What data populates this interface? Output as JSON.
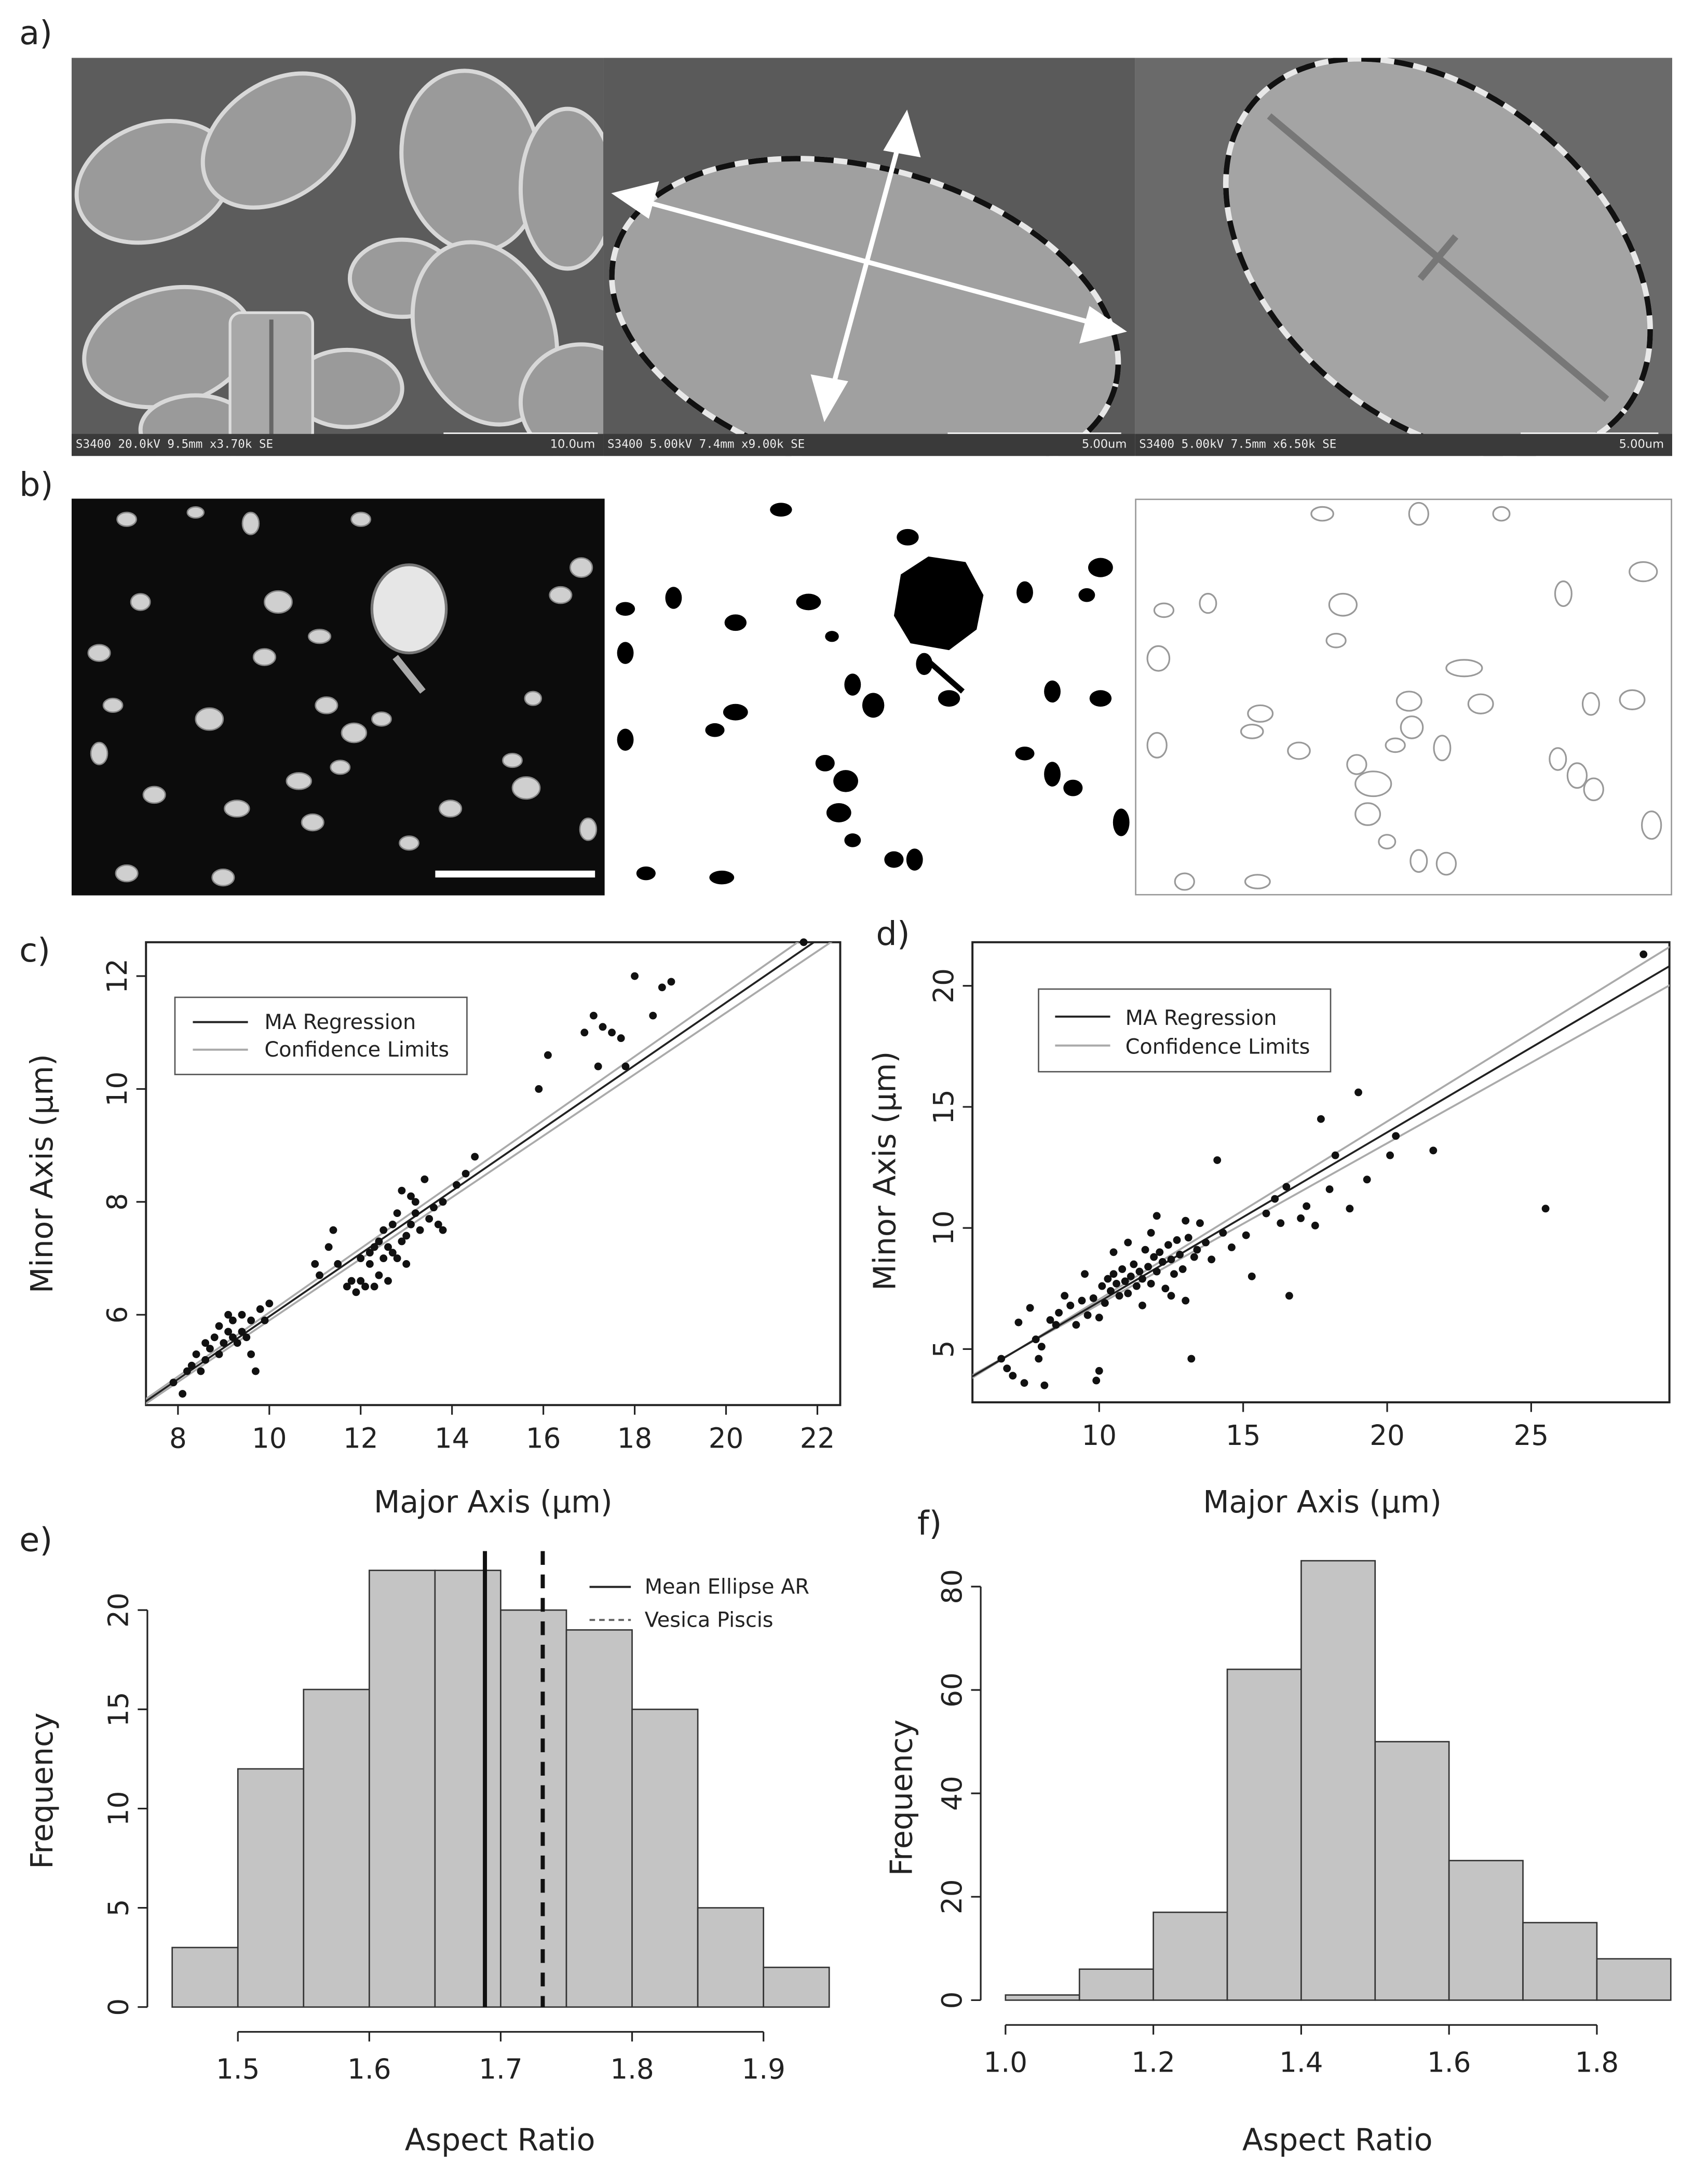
{
  "panels": {
    "a": {
      "label": "a)",
      "images": [
        {
          "footer": "S3400 20.0kV 9.5mm x3.70k SE",
          "scale": "10.0um"
        },
        {
          "footer": "S3400 5.00kV 7.4mm x9.00k SE",
          "scale": "5.00um"
        },
        {
          "footer": "S3400 5.00kV 7.5mm x6.50k SE",
          "scale": "5.00um"
        }
      ]
    },
    "b": {
      "label": "b)"
    },
    "c": {
      "label": "c)"
    },
    "d": {
      "label": "d)"
    },
    "e": {
      "label": "e)"
    },
    "f": {
      "label": "f)"
    }
  },
  "chart_data": [
    {
      "id": "c",
      "type": "scatter",
      "xlabel": "Major Axis (µm)",
      "ylabel": "Minor Axis (µm)",
      "xlim": [
        7.3,
        22.5
      ],
      "ylim": [
        4.4,
        12.6
      ],
      "xticks": [
        8,
        10,
        12,
        14,
        16,
        18,
        20,
        22
      ],
      "yticks": [
        6,
        8,
        10,
        12
      ],
      "legend": {
        "position": "top-left",
        "entries": [
          "MA Regression",
          "Confidence Limits"
        ]
      },
      "regression": {
        "slope": 0.556,
        "intercept": 0.41,
        "lower": {
          "slope": 0.545,
          "intercept": 0.45
        },
        "upper": {
          "slope": 0.567,
          "intercept": 0.37
        }
      },
      "points": [
        [
          7.9,
          4.8
        ],
        [
          8.1,
          4.6
        ],
        [
          8.2,
          5.0
        ],
        [
          8.3,
          5.1
        ],
        [
          8.4,
          5.3
        ],
        [
          8.5,
          5.0
        ],
        [
          8.6,
          5.5
        ],
        [
          8.7,
          5.4
        ],
        [
          8.8,
          5.6
        ],
        [
          8.9,
          5.3
        ],
        [
          8.9,
          5.8
        ],
        [
          9.0,
          5.5
        ],
        [
          9.1,
          5.7
        ],
        [
          9.2,
          5.9
        ],
        [
          9.2,
          5.6
        ],
        [
          9.3,
          5.5
        ],
        [
          9.4,
          6.0
        ],
        [
          9.4,
          5.7
        ],
        [
          9.5,
          5.6
        ],
        [
          9.6,
          5.9
        ],
        [
          9.7,
          5.0
        ],
        [
          9.8,
          6.1
        ],
        [
          9.9,
          5.9
        ],
        [
          10.0,
          6.2
        ],
        [
          9.1,
          6.0
        ],
        [
          8.6,
          5.2
        ],
        [
          9.6,
          5.3
        ],
        [
          11.1,
          6.7
        ],
        [
          11.3,
          7.2
        ],
        [
          11.4,
          7.5
        ],
        [
          11.5,
          6.9
        ],
        [
          11.7,
          6.5
        ],
        [
          11.8,
          6.6
        ],
        [
          11.9,
          6.4
        ],
        [
          12.0,
          6.6
        ],
        [
          12.1,
          6.5
        ],
        [
          12.2,
          6.9
        ],
        [
          12.2,
          7.1
        ],
        [
          12.3,
          7.2
        ],
        [
          12.4,
          7.3
        ],
        [
          12.4,
          6.7
        ],
        [
          12.5,
          7.0
        ],
        [
          12.5,
          7.5
        ],
        [
          12.6,
          7.2
        ],
        [
          12.6,
          6.6
        ],
        [
          12.7,
          7.6
        ],
        [
          12.7,
          7.1
        ],
        [
          12.8,
          7.8
        ],
        [
          12.8,
          7.0
        ],
        [
          12.9,
          7.3
        ],
        [
          12.9,
          8.2
        ],
        [
          13.0,
          7.4
        ],
        [
          13.0,
          6.9
        ],
        [
          13.1,
          7.6
        ],
        [
          13.1,
          8.1
        ],
        [
          13.2,
          7.8
        ],
        [
          13.3,
          7.5
        ],
        [
          13.4,
          8.4
        ],
        [
          13.5,
          7.7
        ],
        [
          13.6,
          7.9
        ],
        [
          13.7,
          7.6
        ],
        [
          13.8,
          8.0
        ],
        [
          13.8,
          7.5
        ],
        [
          14.1,
          8.3
        ],
        [
          14.3,
          8.5
        ],
        [
          14.5,
          8.8
        ],
        [
          11.0,
          6.9
        ],
        [
          12.0,
          7.0
        ],
        [
          12.3,
          6.5
        ],
        [
          13.2,
          8.0
        ],
        [
          15.9,
          10.0
        ],
        [
          16.1,
          10.6
        ],
        [
          16.9,
          11.0
        ],
        [
          17.1,
          11.3
        ],
        [
          17.2,
          10.4
        ],
        [
          17.3,
          11.1
        ],
        [
          17.5,
          11.0
        ],
        [
          17.7,
          10.9
        ],
        [
          18.0,
          12.0
        ],
        [
          17.8,
          10.4
        ],
        [
          18.4,
          11.3
        ],
        [
          18.6,
          11.8
        ],
        [
          18.8,
          11.9
        ],
        [
          21.7,
          12.6
        ]
      ]
    },
    {
      "id": "d",
      "type": "scatter",
      "xlabel": "Major Axis (µm)",
      "ylabel": "Minor Axis (µm)",
      "xlim": [
        5.6,
        29.8
      ],
      "ylim": [
        2.8,
        21.8
      ],
      "xticks": [
        10,
        15,
        20,
        25
      ],
      "yticks": [
        5,
        10,
        15,
        20
      ],
      "legend": {
        "position": "top-left",
        "entries": [
          "MA Regression",
          "Confidence Limits"
        ]
      },
      "regression": {
        "slope": 0.7,
        "intercept": -0.05,
        "lower": {
          "slope": 0.665,
          "intercept": 0.2
        },
        "upper": {
          "slope": 0.735,
          "intercept": -0.3
        }
      },
      "points": [
        [
          6.6,
          4.6
        ],
        [
          6.8,
          4.2
        ],
        [
          7.0,
          3.9
        ],
        [
          7.2,
          6.1
        ],
        [
          7.4,
          3.6
        ],
        [
          7.6,
          6.7
        ],
        [
          7.8,
          5.4
        ],
        [
          7.9,
          4.6
        ],
        [
          8.0,
          5.1
        ],
        [
          8.1,
          3.5
        ],
        [
          8.3,
          6.2
        ],
        [
          8.5,
          6.0
        ],
        [
          8.6,
          6.5
        ],
        [
          8.8,
          7.2
        ],
        [
          9.0,
          6.8
        ],
        [
          9.2,
          6.0
        ],
        [
          9.4,
          7.0
        ],
        [
          9.6,
          6.4
        ],
        [
          9.8,
          7.1
        ],
        [
          9.9,
          3.7
        ],
        [
          10.0,
          4.1
        ],
        [
          10.1,
          7.6
        ],
        [
          10.2,
          6.9
        ],
        [
          10.3,
          7.9
        ],
        [
          10.4,
          7.4
        ],
        [
          10.5,
          8.1
        ],
        [
          10.6,
          7.7
        ],
        [
          10.7,
          7.2
        ],
        [
          10.8,
          8.3
        ],
        [
          10.9,
          7.8
        ],
        [
          11.0,
          7.3
        ],
        [
          11.1,
          8.0
        ],
        [
          11.2,
          8.5
        ],
        [
          11.3,
          7.6
        ],
        [
          11.4,
          8.2
        ],
        [
          11.5,
          7.9
        ],
        [
          11.6,
          9.1
        ],
        [
          11.7,
          8.4
        ],
        [
          11.8,
          7.7
        ],
        [
          11.9,
          8.8
        ],
        [
          12.0,
          8.2
        ],
        [
          12.1,
          9.0
        ],
        [
          12.2,
          8.6
        ],
        [
          12.3,
          7.5
        ],
        [
          12.4,
          9.3
        ],
        [
          12.5,
          8.7
        ],
        [
          12.6,
          8.1
        ],
        [
          12.7,
          9.5
        ],
        [
          12.8,
          8.9
        ],
        [
          12.9,
          8.3
        ],
        [
          13.0,
          10.3
        ],
        [
          13.1,
          9.6
        ],
        [
          13.2,
          4.6
        ],
        [
          13.3,
          8.8
        ],
        [
          13.4,
          9.1
        ],
        [
          13.5,
          10.2
        ],
        [
          13.7,
          9.4
        ],
        [
          13.9,
          8.7
        ],
        [
          14.1,
          12.8
        ],
        [
          14.3,
          9.8
        ],
        [
          14.6,
          9.2
        ],
        [
          11.0,
          9.4
        ],
        [
          11.5,
          6.8
        ],
        [
          12.0,
          10.5
        ],
        [
          10.5,
          9.0
        ],
        [
          12.5,
          7.2
        ],
        [
          13.0,
          7.0
        ],
        [
          11.8,
          9.8
        ],
        [
          9.5,
          8.1
        ],
        [
          10.0,
          6.3
        ],
        [
          15.1,
          9.7
        ],
        [
          15.3,
          8.0
        ],
        [
          15.8,
          10.6
        ],
        [
          16.1,
          11.2
        ],
        [
          16.3,
          10.2
        ],
        [
          16.5,
          11.7
        ],
        [
          16.6,
          7.2
        ],
        [
          17.0,
          10.4
        ],
        [
          17.2,
          10.9
        ],
        [
          17.5,
          10.1
        ],
        [
          17.7,
          14.5
        ],
        [
          18.0,
          11.6
        ],
        [
          18.2,
          13.0
        ],
        [
          18.7,
          10.8
        ],
        [
          19.0,
          15.6
        ],
        [
          19.3,
          12.0
        ],
        [
          20.1,
          13.0
        ],
        [
          20.3,
          13.8
        ],
        [
          21.6,
          13.2
        ],
        [
          25.5,
          10.8
        ],
        [
          28.9,
          21.3
        ]
      ]
    },
    {
      "id": "e",
      "type": "bar",
      "xlabel": "Aspect Ratio",
      "ylabel": "Frequency",
      "xlim": [
        1.45,
        1.95
      ],
      "ylim": [
        0,
        22
      ],
      "xticks": [
        1.5,
        1.6,
        1.7,
        1.8,
        1.9
      ],
      "yticks": [
        0,
        5,
        10,
        15,
        20
      ],
      "bin_edges": [
        1.45,
        1.5,
        1.55,
        1.6,
        1.65,
        1.7,
        1.75,
        1.8,
        1.85,
        1.9,
        1.95
      ],
      "values": [
        3,
        12,
        16,
        22,
        22,
        20,
        19,
        15,
        5,
        2
      ],
      "vlines": [
        {
          "name": "Mean Ellipse AR",
          "x": 1.688,
          "style": "solid"
        },
        {
          "name": "Vesica Piscis",
          "x": 1.732,
          "style": "dashed"
        }
      ],
      "legend": {
        "position": "top-right",
        "entries": [
          "Mean Ellipse AR",
          "Vesica Piscis"
        ]
      }
    },
    {
      "id": "f",
      "type": "bar",
      "xlabel": "Aspect Ratio",
      "ylabel": "Frequency",
      "xlim": [
        1.0,
        1.9
      ],
      "ylim": [
        0,
        85
      ],
      "xticks": [
        1.0,
        1.2,
        1.4,
        1.6,
        1.8
      ],
      "yticks": [
        0,
        20,
        40,
        60,
        80
      ],
      "bin_edges": [
        1.0,
        1.1,
        1.2,
        1.3,
        1.4,
        1.5,
        1.6,
        1.7,
        1.8,
        1.9
      ],
      "values": [
        1,
        6,
        17,
        64,
        85,
        50,
        27,
        15,
        8
      ]
    }
  ]
}
